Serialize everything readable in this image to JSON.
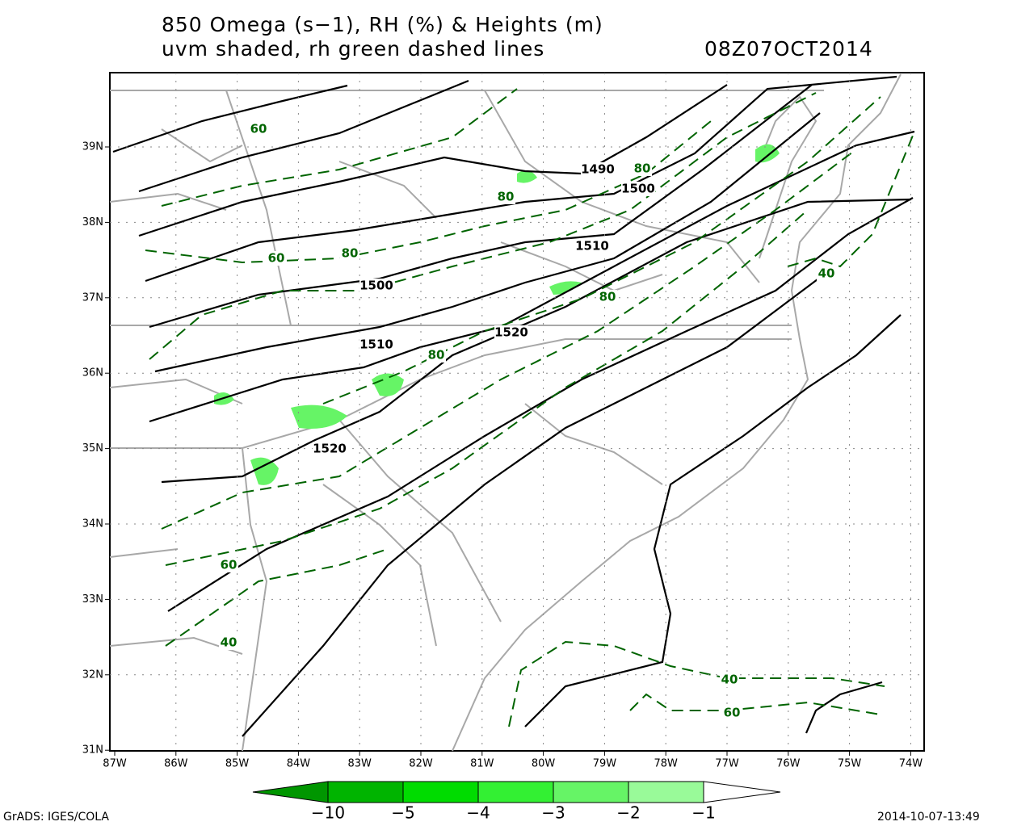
{
  "title": {
    "line1": "850 Omega (s−1), RH (%) & Heights (m)",
    "line2": "uvm shaded, rh green dashed lines",
    "valid": "08Z07OCT2014"
  },
  "lat_labels": [
    "39N",
    "38N",
    "37N",
    "36N",
    "35N",
    "34N",
    "33N",
    "32N",
    "31N"
  ],
  "lon_labels": [
    "87W",
    "86W",
    "85W",
    "84W",
    "83W",
    "82W",
    "81W",
    "80W",
    "79W",
    "78W",
    "77W",
    "76W",
    "75W",
    "74W"
  ],
  "height_labels": [
    1490,
    1500,
    1510,
    1500,
    1520,
    1510,
    1520
  ],
  "rh_labels": [
    60,
    80,
    80,
    60,
    80,
    80,
    40,
    80,
    60,
    40,
    40,
    60
  ],
  "colorbar": {
    "labels": [
      "−10",
      "−5",
      "−4",
      "−3",
      "−2",
      "−1"
    ],
    "colors": [
      "#009600",
      "#00b400",
      "#00dc00",
      "#33f033",
      "#66f466",
      "#99fa99",
      "#ffffff"
    ]
  },
  "footer": {
    "left": "GrADS: IGES/COLA",
    "right": "2014-10-07-13:49"
  }
}
